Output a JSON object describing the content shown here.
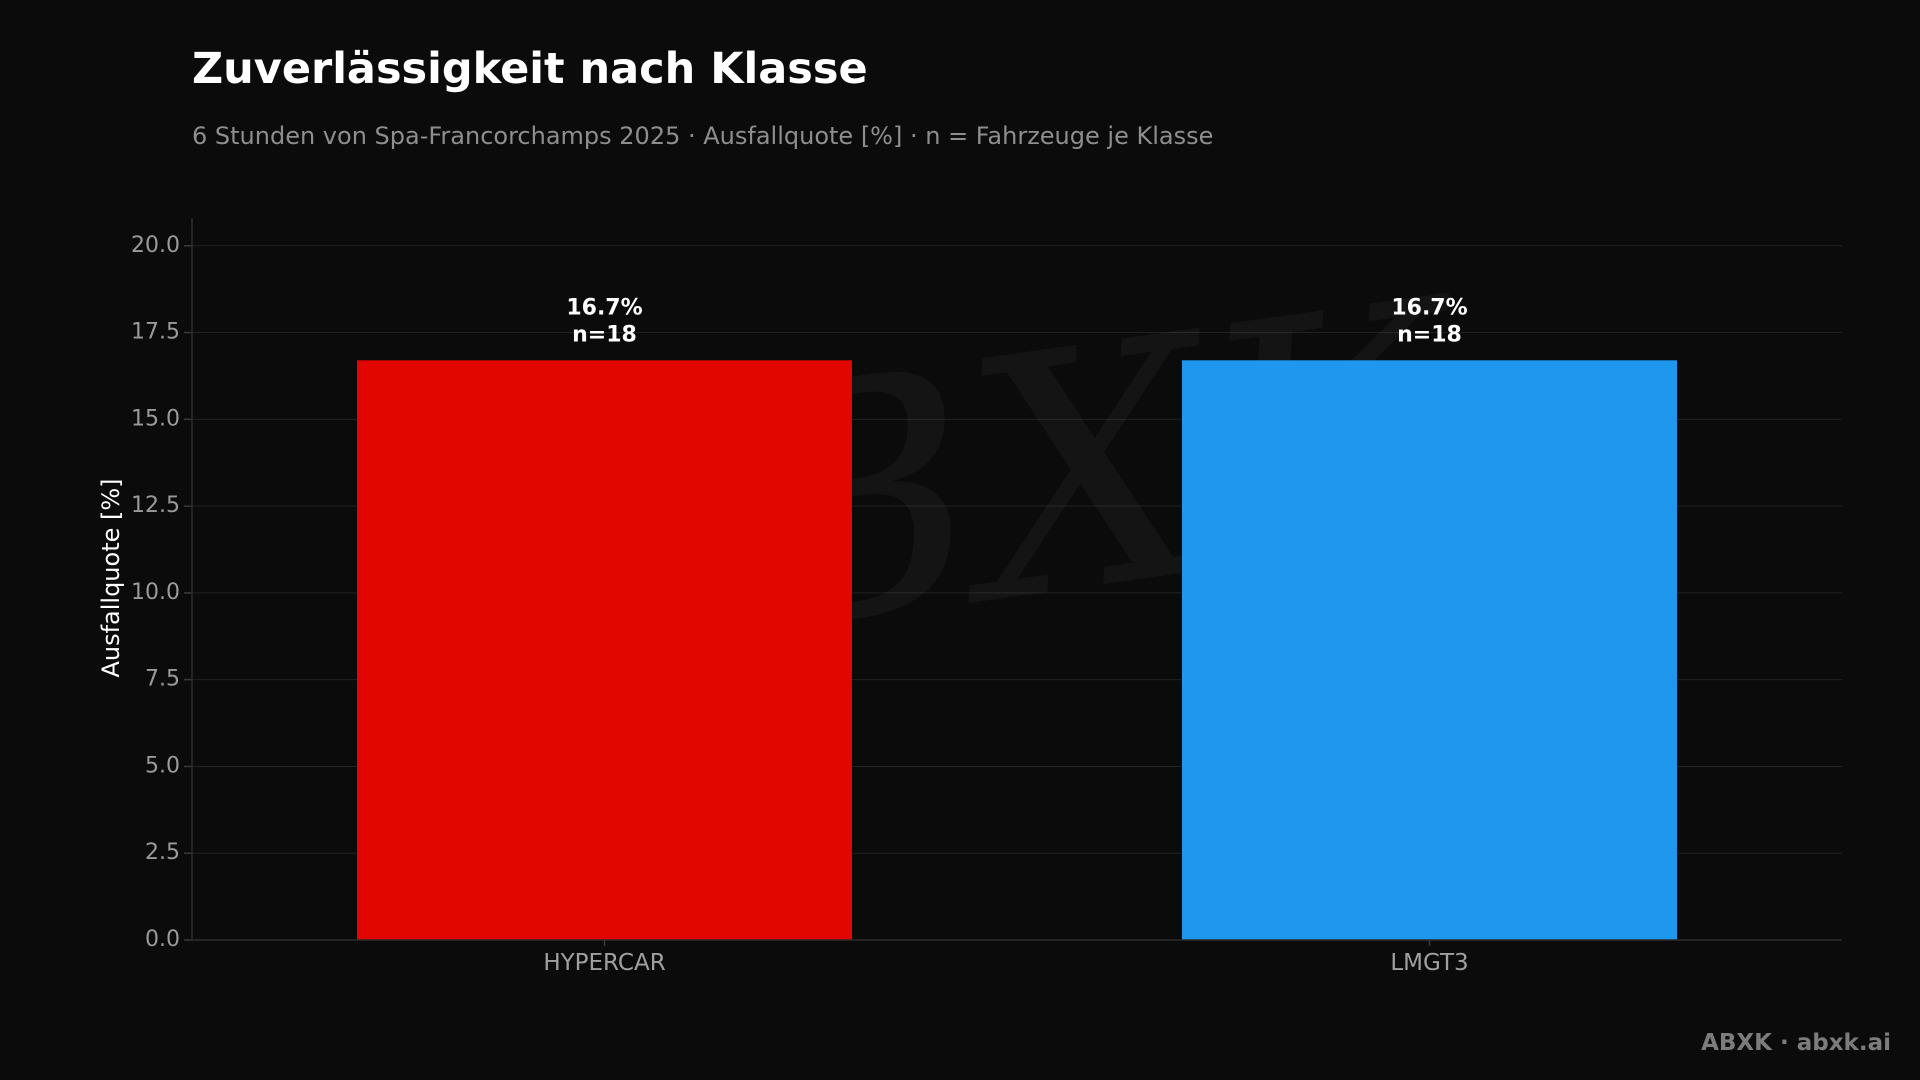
{
  "header": {
    "title": "Zuverlässigkeit nach Klasse",
    "subtitle": "6 Stunden von Spa-Francorchamps 2025 · Ausfallquote [%] · n = Fahrzeuge je Klasse"
  },
  "footer": {
    "brand": "ABXK · abxk.ai"
  },
  "watermark": {
    "text": "ABXK"
  },
  "colors": {
    "background": "#0b0b0b",
    "grid": "#222222",
    "hypercar": "#e10600",
    "lmgt3": "#1e98ef"
  },
  "chart_data": {
    "type": "bar",
    "title": "Zuverlässigkeit nach Klasse",
    "subtitle": "6 Stunden von Spa-Francorchamps 2025 · Ausfallquote [%] · n = Fahrzeuge je Klasse",
    "xlabel": "",
    "ylabel": "Ausfallquote [%]",
    "categories": [
      "HYPERCAR",
      "LMGT3"
    ],
    "values": [
      16.7,
      16.7
    ],
    "n": [
      18,
      18
    ],
    "value_labels": [
      "16.7%",
      "16.7%"
    ],
    "n_labels": [
      "n=18",
      "n=18"
    ],
    "bar_colors": [
      "#e10600",
      "#1e98ef"
    ],
    "ylim": [
      0,
      20.8
    ],
    "yticks": [
      0,
      2.5,
      5,
      7.5,
      10,
      12.5,
      15,
      17.5,
      20
    ],
    "ytick_labels": [
      "0.0",
      "2.5",
      "5.0",
      "7.5",
      "10.0",
      "12.5",
      "15.0",
      "17.5",
      "20.0"
    ],
    "grid": true,
    "legend": "none"
  }
}
